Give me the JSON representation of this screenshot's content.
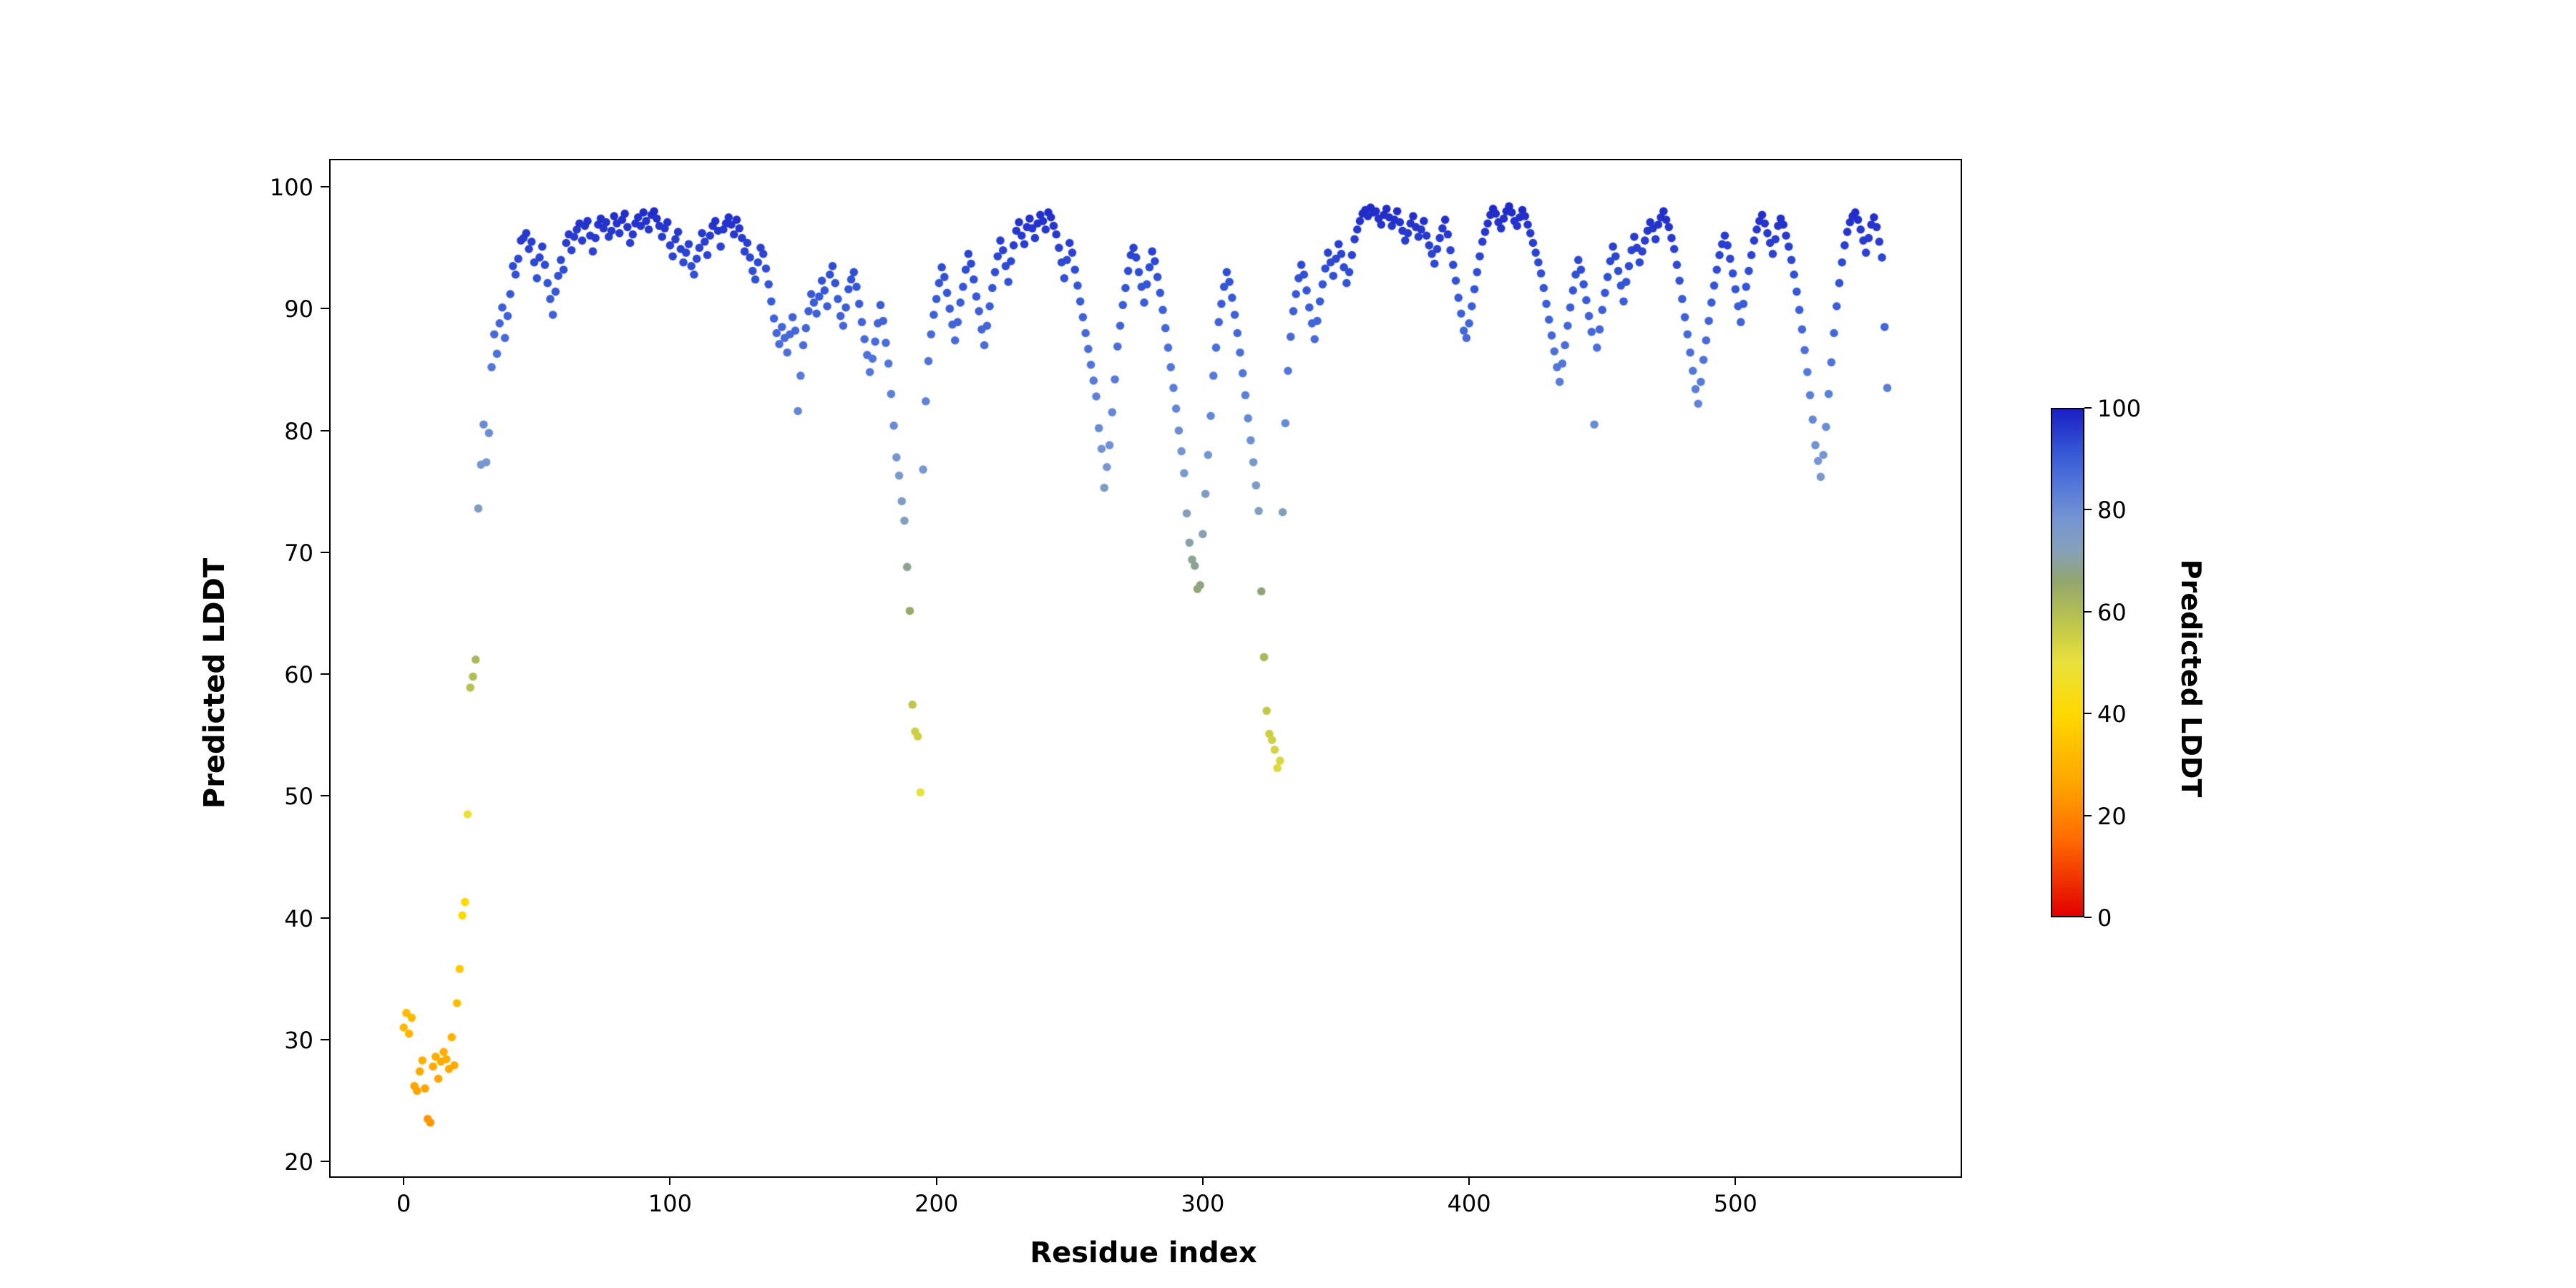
{
  "figure": {
    "background": "#ffffff"
  },
  "chart_data": {
    "type": "scatter",
    "title": "",
    "xlabel": "Residue index",
    "ylabel": "Predicted LDDT",
    "xlim": [
      -28,
      584
    ],
    "ylim": [
      18.9,
      102.3
    ],
    "x_ticks": [
      0,
      100,
      200,
      300,
      400,
      500
    ],
    "y_ticks": [
      20,
      30,
      40,
      50,
      60,
      70,
      80,
      90,
      100
    ],
    "grid": false,
    "legend": "none",
    "marker_size": 5.8,
    "x_is_index": true,
    "values": [
      31.0,
      32.2,
      30.5,
      31.8,
      26.2,
      25.8,
      27.4,
      28.3,
      26.0,
      23.5,
      23.2,
      27.8,
      28.6,
      26.8,
      28.2,
      29.0,
      28.4,
      27.6,
      30.2,
      27.9,
      33.0,
      35.8,
      40.2,
      41.3,
      48.5,
      58.9,
      59.8,
      61.2,
      73.6,
      77.2,
      80.5,
      77.4,
      79.8,
      85.2,
      87.9,
      86.3,
      88.8,
      90.1,
      87.6,
      89.4,
      91.2,
      93.5,
      92.8,
      94.1,
      95.6,
      95.8,
      96.2,
      94.9,
      95.5,
      93.8,
      92.5,
      94.2,
      95.1,
      93.6,
      92.1,
      90.8,
      89.5,
      91.4,
      92.7,
      94.0,
      93.2,
      95.4,
      96.1,
      94.8,
      95.9,
      96.5,
      97.0,
      95.6,
      96.8,
      97.2,
      96.0,
      94.7,
      95.8,
      96.9,
      97.4,
      96.6,
      97.1,
      95.9,
      96.4,
      97.6,
      97.0,
      96.2,
      97.3,
      97.8,
      96.7,
      95.4,
      96.1,
      97.0,
      97.5,
      96.8,
      97.9,
      97.2,
      96.5,
      97.7,
      98.0,
      97.4,
      96.8,
      95.9,
      96.6,
      97.1,
      95.2,
      94.3,
      95.7,
      96.3,
      94.9,
      93.8,
      94.6,
      95.3,
      93.5,
      92.8,
      94.1,
      95.0,
      96.2,
      95.5,
      94.4,
      96.0,
      96.8,
      97.2,
      96.4,
      95.1,
      96.5,
      97.0,
      97.5,
      96.9,
      96.1,
      97.3,
      96.6,
      95.8,
      94.7,
      95.4,
      94.2,
      93.1,
      92.4,
      93.8,
      95.0,
      94.5,
      93.3,
      92.0,
      90.6,
      89.2,
      88.0,
      87.1,
      88.5,
      87.6,
      86.4,
      87.9,
      89.3,
      88.2,
      81.6,
      84.5,
      87.0,
      88.4,
      89.8,
      91.2,
      90.5,
      89.6,
      91.0,
      92.3,
      91.5,
      90.2,
      92.8,
      93.5,
      92.1,
      90.8,
      89.4,
      88.6,
      90.1,
      91.6,
      92.4,
      93.0,
      91.8,
      90.4,
      88.9,
      87.5,
      86.2,
      84.8,
      85.9,
      87.3,
      88.8,
      90.3,
      89.0,
      87.2,
      85.5,
      83.0,
      80.4,
      77.8,
      76.3,
      74.2,
      72.6,
      68.8,
      65.2,
      57.5,
      55.3,
      54.9,
      50.3,
      76.8,
      82.4,
      85.7,
      87.9,
      89.5,
      90.8,
      92.1,
      93.4,
      92.6,
      91.3,
      90.0,
      88.7,
      87.4,
      88.9,
      90.5,
      91.8,
      93.2,
      94.5,
      93.7,
      92.4,
      91.0,
      89.8,
      88.3,
      87.0,
      88.6,
      90.2,
      91.7,
      93.0,
      94.3,
      95.6,
      94.8,
      93.5,
      92.2,
      93.9,
      95.2,
      96.4,
      97.1,
      96.0,
      95.3,
      96.7,
      97.4,
      96.6,
      95.8,
      97.0,
      97.7,
      97.2,
      96.5,
      97.9,
      97.5,
      96.8,
      96.1,
      95.0,
      93.8,
      92.5,
      94.0,
      95.4,
      94.6,
      93.2,
      91.9,
      90.6,
      89.3,
      88.0,
      86.7,
      85.4,
      84.1,
      82.8,
      80.2,
      78.5,
      75.3,
      77.0,
      78.8,
      81.5,
      84.2,
      86.9,
      88.6,
      90.3,
      91.7,
      93.1,
      94.4,
      95.0,
      94.2,
      93.0,
      91.8,
      90.5,
      92.0,
      93.4,
      94.7,
      93.9,
      92.6,
      91.3,
      89.9,
      88.4,
      86.8,
      85.2,
      83.5,
      81.8,
      80.0,
      78.3,
      76.5,
      73.2,
      70.8,
      69.4,
      68.9,
      67.0,
      67.3,
      71.5,
      74.8,
      78.0,
      81.2,
      84.5,
      86.8,
      88.9,
      90.4,
      91.8,
      93.0,
      92.2,
      90.9,
      89.5,
      88.0,
      86.4,
      84.7,
      82.9,
      81.0,
      79.2,
      77.4,
      75.5,
      73.4,
      66.8,
      61.4,
      57.0,
      55.1,
      54.6,
      53.8,
      52.3,
      52.9,
      73.3,
      80.6,
      84.9,
      87.7,
      89.8,
      91.2,
      92.5,
      93.6,
      92.8,
      91.5,
      90.1,
      88.8,
      87.5,
      89.0,
      90.6,
      92.0,
      93.3,
      94.6,
      93.8,
      92.7,
      94.1,
      95.3,
      94.5,
      93.4,
      92.1,
      93.0,
      94.4,
      95.7,
      96.5,
      97.2,
      97.8,
      98.1,
      97.6,
      98.3,
      97.9,
      98.0,
      97.4,
      96.9,
      97.7,
      98.2,
      97.5,
      96.8,
      97.3,
      98.0,
      97.1,
      96.4,
      95.6,
      96.2,
      97.0,
      97.6,
      96.7,
      95.9,
      96.5,
      97.2,
      96.0,
      95.2,
      94.5,
      93.7,
      94.9,
      95.8,
      96.6,
      97.3,
      96.1,
      94.8,
      93.6,
      92.3,
      90.9,
      89.6,
      88.2,
      87.6,
      88.8,
      90.2,
      91.6,
      93.0,
      94.3,
      95.5,
      96.3,
      97.0,
      97.7,
      98.2,
      97.8,
      97.1,
      96.6,
      97.4,
      98.0,
      98.4,
      97.9,
      97.2,
      96.8,
      97.5,
      98.1,
      97.6,
      96.9,
      96.2,
      95.4,
      94.6,
      93.8,
      92.9,
      91.7,
      90.4,
      89.1,
      87.8,
      86.5,
      85.2,
      84.0,
      85.5,
      87.0,
      88.6,
      90.1,
      91.5,
      92.8,
      94.0,
      93.2,
      92.0,
      90.7,
      89.4,
      88.1,
      80.5,
      86.8,
      88.3,
      89.9,
      91.3,
      92.6,
      93.9,
      95.1,
      94.3,
      93.1,
      91.9,
      90.6,
      92.2,
      93.5,
      94.8,
      95.9,
      95.0,
      93.8,
      94.7,
      95.6,
      96.4,
      97.1,
      96.6,
      95.7,
      96.9,
      97.5,
      98.0,
      97.3,
      96.7,
      95.8,
      94.9,
      93.6,
      92.3,
      90.8,
      89.3,
      87.9,
      86.4,
      84.9,
      83.4,
      82.2,
      84.0,
      85.8,
      87.4,
      89.0,
      90.5,
      91.9,
      93.2,
      94.4,
      95.3,
      96.0,
      95.2,
      94.1,
      92.9,
      91.6,
      90.2,
      88.9,
      90.4,
      91.8,
      93.1,
      94.4,
      95.6,
      96.5,
      97.2,
      97.7,
      97.0,
      96.2,
      95.4,
      94.5,
      95.7,
      96.8,
      97.4,
      96.9,
      96.0,
      95.1,
      94.0,
      92.8,
      91.4,
      89.9,
      88.3,
      86.6,
      84.8,
      82.9,
      80.9,
      78.8,
      77.5,
      76.2,
      78.0,
      80.3,
      83.0,
      85.6,
      88.0,
      90.2,
      92.1,
      93.8,
      95.2,
      96.3,
      97.1,
      97.6,
      97.9,
      97.3,
      96.5,
      95.6,
      94.6,
      95.8,
      96.9,
      97.5,
      96.7,
      95.5,
      94.2,
      88.5,
      83.5
    ],
    "colorbar": {
      "label": "Predicted LDDT",
      "min": 0,
      "max": 100,
      "ticks": [
        0,
        20,
        40,
        60,
        80,
        100
      ],
      "stops": [
        {
          "t": 0.0,
          "color": "#e30000"
        },
        {
          "t": 0.15,
          "color": "#ff6a00"
        },
        {
          "t": 0.25,
          "color": "#ffa000"
        },
        {
          "t": 0.4,
          "color": "#ffd900"
        },
        {
          "t": 0.5,
          "color": "#e9e13c"
        },
        {
          "t": 0.58,
          "color": "#bcc44c"
        },
        {
          "t": 0.66,
          "color": "#93a66e"
        },
        {
          "t": 0.72,
          "color": "#86a0b8"
        },
        {
          "t": 0.78,
          "color": "#7596d2"
        },
        {
          "t": 0.85,
          "color": "#5377d9"
        },
        {
          "t": 0.92,
          "color": "#3355d6"
        },
        {
          "t": 1.0,
          "color": "#1b1fc4"
        }
      ]
    }
  }
}
